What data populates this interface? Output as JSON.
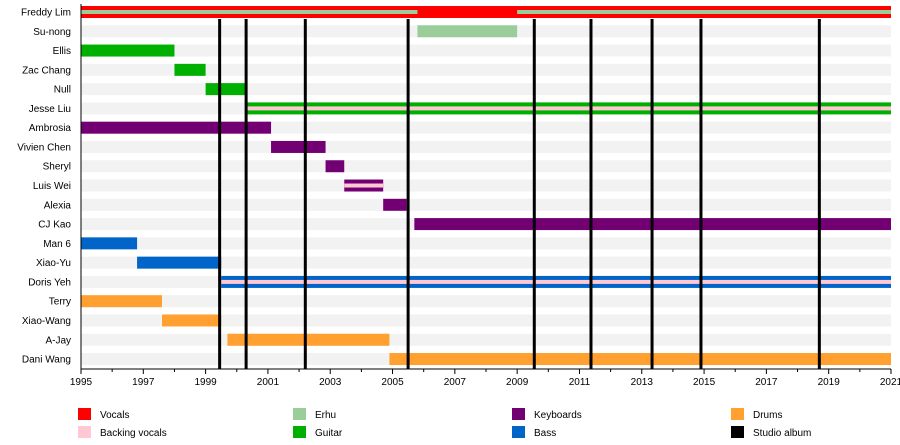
{
  "chart_data": {
    "type": "timeline",
    "title": "",
    "xlim": [
      1995,
      2021
    ],
    "x_tick_labels": [
      "1995",
      "1997",
      "1999",
      "2001",
      "2003",
      "2005",
      "2007",
      "2009",
      "2011",
      "2013",
      "2015",
      "2017",
      "2019",
      "2021"
    ],
    "colors": {
      "Vocals": "#ff0000",
      "Backing vocals": "#ffc8d2",
      "Erhu": "#9acd9a",
      "Guitar": "#00b000",
      "Keyboards": "#730073",
      "Bass": "#0064c8",
      "Drums": "#ffa030",
      "Studio album": "#000000"
    },
    "members": [
      {
        "name": "Freddy Lim",
        "bars": [
          {
            "role": "Vocals",
            "start": 1995,
            "end": 2021
          }
        ],
        "strips": [
          {
            "role": "Erhu",
            "start": 1995,
            "end": 2005.8
          },
          {
            "role": "Erhu",
            "start": 2009,
            "end": 2021
          }
        ]
      },
      {
        "name": "Su-nong",
        "bars": [
          {
            "role": "Erhu",
            "start": 2005.8,
            "end": 2009
          }
        ],
        "strips": []
      },
      {
        "name": "Ellis",
        "bars": [
          {
            "role": "Guitar",
            "start": 1995,
            "end": 1998
          }
        ],
        "strips": []
      },
      {
        "name": "Zac Chang",
        "bars": [
          {
            "role": "Guitar",
            "start": 1998,
            "end": 1999
          }
        ],
        "strips": []
      },
      {
        "name": "Null",
        "bars": [
          {
            "role": "Guitar",
            "start": 1999,
            "end": 2000.3
          }
        ],
        "strips": []
      },
      {
        "name": "Jesse Liu",
        "bars": [
          {
            "role": "Guitar",
            "start": 2000.3,
            "end": 2021
          }
        ],
        "strips": [
          {
            "role": "Backing vocals",
            "start": 2000.3,
            "end": 2021
          }
        ]
      },
      {
        "name": "Ambrosia",
        "bars": [
          {
            "role": "Keyboards",
            "start": 1995,
            "end": 2001.1
          }
        ],
        "strips": []
      },
      {
        "name": "Vivien Chen",
        "bars": [
          {
            "role": "Keyboards",
            "start": 2001.1,
            "end": 2002.85
          }
        ],
        "strips": []
      },
      {
        "name": "Sheryl",
        "bars": [
          {
            "role": "Keyboards",
            "start": 2002.85,
            "end": 2003.45
          }
        ],
        "strips": []
      },
      {
        "name": "Luis Wei",
        "bars": [
          {
            "role": "Keyboards",
            "start": 2003.45,
            "end": 2004.7
          }
        ],
        "strips": [
          {
            "role": "Backing vocals",
            "start": 2003.45,
            "end": 2004.7
          }
        ]
      },
      {
        "name": "Alexia",
        "bars": [
          {
            "role": "Keyboards",
            "start": 2004.7,
            "end": 2005.45
          }
        ],
        "strips": []
      },
      {
        "name": "CJ Kao",
        "bars": [
          {
            "role": "Keyboards",
            "start": 2005.7,
            "end": 2021
          }
        ],
        "strips": []
      },
      {
        "name": "Man 6",
        "bars": [
          {
            "role": "Bass",
            "start": 1995,
            "end": 1996.8
          }
        ],
        "strips": []
      },
      {
        "name": "Xiao-Yu",
        "bars": [
          {
            "role": "Bass",
            "start": 1996.8,
            "end": 1999.5
          }
        ],
        "strips": []
      },
      {
        "name": "Doris Yeh",
        "bars": [
          {
            "role": "Bass",
            "start": 1999.5,
            "end": 2021
          }
        ],
        "strips": [
          {
            "role": "Backing vocals",
            "start": 1999.5,
            "end": 2021
          }
        ]
      },
      {
        "name": "Terry",
        "bars": [
          {
            "role": "Drums",
            "start": 1995,
            "end": 1997.6
          }
        ],
        "strips": []
      },
      {
        "name": "Xiao-Wang",
        "bars": [
          {
            "role": "Drums",
            "start": 1997.6,
            "end": 1999.5
          }
        ],
        "strips": []
      },
      {
        "name": "A-Jay",
        "bars": [
          {
            "role": "Drums",
            "start": 1999.7,
            "end": 2004.9
          }
        ],
        "strips": []
      },
      {
        "name": "Dani Wang",
        "bars": [
          {
            "role": "Drums",
            "start": 2004.9,
            "end": 2021
          }
        ],
        "strips": []
      }
    ],
    "studio_albums": [
      1999.45,
      2000.3,
      2002.2,
      2005.5,
      2009.55,
      2011.37,
      2013.33,
      2014.9,
      2018.7
    ],
    "legend": [
      {
        "label": "Vocals",
        "color": "#ff0000"
      },
      {
        "label": "Backing vocals",
        "color": "#ffc8d2"
      },
      {
        "label": "Erhu",
        "color": "#9acd9a"
      },
      {
        "label": "Guitar",
        "color": "#00b000"
      },
      {
        "label": "Keyboards",
        "color": "#730073"
      },
      {
        "label": "Bass",
        "color": "#0064c8"
      },
      {
        "label": "Drums",
        "color": "#ffa030"
      },
      {
        "label": "Studio album",
        "color": "#000000"
      }
    ],
    "legend_position": "bottom"
  }
}
